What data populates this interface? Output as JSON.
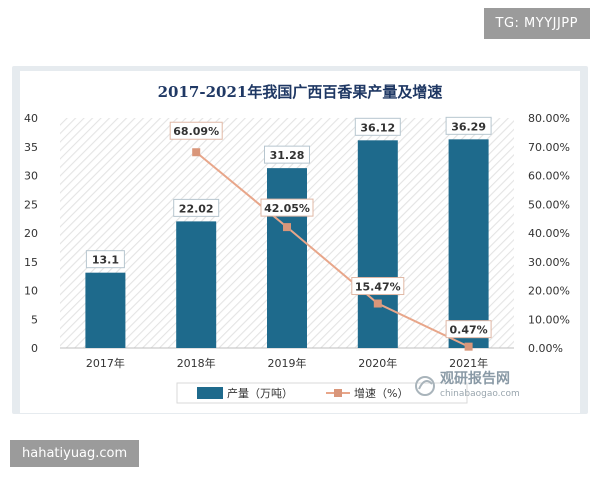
{
  "watermark_top": "TG: MYYJJPP",
  "watermark_bottom": "hahatiyuag.com",
  "brand": {
    "name": "观研报告网",
    "url": "chinabaogao.com"
  },
  "chart_data": {
    "type": "bar",
    "title": "2017-2021年我国广西百香果产量及增速",
    "categories": [
      "2017年",
      "2018年",
      "2019年",
      "2020年",
      "2021年"
    ],
    "series": [
      {
        "name": "产量（万吨）",
        "type": "bar",
        "axis": "left",
        "values": [
          13.1,
          22.02,
          31.28,
          36.12,
          36.29
        ],
        "labels": [
          "13.1",
          "22.02",
          "31.28",
          "36.12",
          "36.29"
        ]
      },
      {
        "name": "增速（%）",
        "type": "line",
        "axis": "right",
        "values": [
          null,
          68.09,
          42.05,
          15.47,
          0.47
        ],
        "labels": [
          "",
          "68.09%",
          "42.05%",
          "15.47%",
          "0.47%"
        ]
      }
    ],
    "y_left": {
      "ylim": [
        0,
        40
      ],
      "ticks": [
        "0",
        "5",
        "10",
        "15",
        "20",
        "25",
        "30",
        "35",
        "40"
      ]
    },
    "y_right": {
      "ylim": [
        0,
        80
      ],
      "ticks": [
        "0.00%",
        "10.00%",
        "20.00%",
        "30.00%",
        "40.00%",
        "50.00%",
        "60.00%",
        "70.00%",
        "80.00%"
      ]
    },
    "grid": false,
    "background": "diagonal-hatch",
    "legend": "bottom",
    "colors": {
      "bar": "#1e6a8c",
      "line": "#e8a68a",
      "marker": "#d9967a",
      "title": "#1f3864"
    }
  }
}
